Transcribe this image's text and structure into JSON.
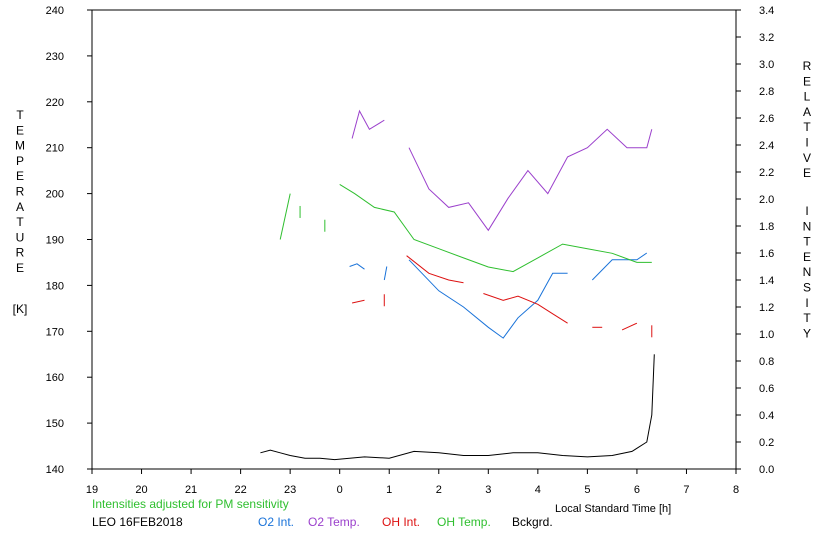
{
  "chart_data": {
    "type": "line",
    "xlabel": "Local Standard Time [h]",
    "x_ticks": [
      "19",
      "20",
      "21",
      "22",
      "23",
      "0",
      "1",
      "2",
      "3",
      "4",
      "5",
      "6",
      "7",
      "8"
    ],
    "xlim": [
      19,
      32
    ],
    "ylabel_left": [
      "T",
      "E",
      "M",
      "P",
      "E",
      "R",
      "A",
      "T",
      "U",
      "R",
      "E"
    ],
    "ylabel_left_unit": "[K]",
    "ylim_left": [
      140,
      240
    ],
    "y_ticks_left": [
      "140",
      "150",
      "160",
      "170",
      "180",
      "190",
      "200",
      "210",
      "220",
      "230",
      "240"
    ],
    "ylabel_right_line1": [
      "R",
      "E",
      "L",
      "A",
      "T",
      "I",
      "V",
      "E"
    ],
    "ylabel_right_line2": [
      "I",
      "N",
      "T",
      "E",
      "N",
      "S",
      "I",
      "T",
      "Y"
    ],
    "ylim_right": [
      0,
      3.4
    ],
    "y_ticks_right": [
      "0.0",
      "0.2",
      "0.4",
      "0.6",
      "0.8",
      "1.0",
      "1.2",
      "1.4",
      "1.6",
      "1.8",
      "2.0",
      "2.2",
      "2.4",
      "2.6",
      "2.8",
      "3.0",
      "3.2",
      "3.4"
    ],
    "note": "Intensities adjusted for PM sensitivity",
    "station": "LEO 16FEB2018",
    "grid": false,
    "series": [
      {
        "name": "O2 Int.",
        "color": "#1a73d9",
        "axis": "right",
        "segments": [
          [
            [
              24.2,
              1.5
            ],
            [
              24.35,
              1.52
            ],
            [
              24.5,
              1.48
            ]
          ],
          [
            [
              24.9,
              1.4
            ],
            [
              24.95,
              1.5
            ]
          ],
          [
            [
              25.4,
              1.55
            ],
            [
              26.0,
              1.32
            ],
            [
              26.5,
              1.2
            ],
            [
              27.0,
              1.05
            ],
            [
              27.3,
              0.97
            ],
            [
              27.6,
              1.12
            ],
            [
              28.0,
              1.25
            ],
            [
              28.3,
              1.45
            ],
            [
              28.6,
              1.45
            ]
          ],
          [
            [
              29.1,
              1.4
            ],
            [
              29.5,
              1.55
            ],
            [
              30.0,
              1.55
            ],
            [
              30.2,
              1.6
            ]
          ]
        ]
      },
      {
        "name": "O2 Temp.",
        "color": "#9b40cc",
        "axis": "left",
        "segments": [
          [
            [
              24.25,
              212
            ],
            [
              24.4,
              218
            ],
            [
              24.6,
              214
            ],
            [
              24.9,
              216
            ]
          ],
          [
            [
              25.4,
              210
            ],
            [
              25.8,
              201
            ],
            [
              26.2,
              197
            ],
            [
              26.6,
              198
            ],
            [
              27.0,
              192
            ],
            [
              27.4,
              199
            ],
            [
              27.8,
              205
            ],
            [
              28.2,
              200
            ],
            [
              28.6,
              208
            ],
            [
              29.0,
              210
            ],
            [
              29.4,
              214
            ],
            [
              29.8,
              210
            ],
            [
              30.2,
              210
            ],
            [
              30.3,
              214
            ]
          ]
        ]
      },
      {
        "name": "OH Int.",
        "color": "#dd1111",
        "axis": "right",
        "segments": [
          [
            [
              24.25,
              1.23
            ],
            [
              24.5,
              1.25
            ]
          ],
          [
            [
              24.9,
              1.25
            ]
          ],
          [
            [
              25.35,
              1.58
            ],
            [
              25.8,
              1.45
            ],
            [
              26.2,
              1.4
            ],
            [
              26.5,
              1.38
            ]
          ],
          [
            [
              26.9,
              1.3
            ],
            [
              27.3,
              1.25
            ],
            [
              27.6,
              1.28
            ],
            [
              28.0,
              1.22
            ],
            [
              28.3,
              1.15
            ],
            [
              28.6,
              1.08
            ]
          ],
          [
            [
              29.1,
              1.05
            ],
            [
              29.3,
              1.05
            ]
          ],
          [
            [
              29.7,
              1.03
            ],
            [
              30.0,
              1.08
            ]
          ],
          [
            [
              30.3,
              1.02
            ]
          ]
        ]
      },
      {
        "name": "OH Temp.",
        "color": "#2fbf2f",
        "axis": "left",
        "segments": [
          [
            [
              22.8,
              190
            ],
            [
              23.0,
              200
            ]
          ],
          [
            [
              23.2,
              196
            ]
          ],
          [
            [
              23.7,
              193
            ]
          ],
          [
            [
              24.0,
              202
            ],
            [
              24.3,
              200
            ],
            [
              24.7,
              197
            ],
            [
              25.1,
              196
            ],
            [
              25.5,
              190
            ],
            [
              26.0,
              188
            ],
            [
              26.5,
              186
            ],
            [
              27.0,
              184
            ],
            [
              27.5,
              183
            ],
            [
              28.0,
              186
            ],
            [
              28.5,
              189
            ],
            [
              29.0,
              188
            ],
            [
              29.5,
              187
            ],
            [
              30.0,
              185
            ],
            [
              30.3,
              185
            ]
          ]
        ]
      },
      {
        "name": "Bckgrd.",
        "color": "#000000",
        "axis": "right",
        "segments": [
          [
            [
              22.4,
              0.12
            ],
            [
              22.6,
              0.14
            ],
            [
              22.8,
              0.12
            ],
            [
              23.0,
              0.1
            ],
            [
              23.3,
              0.08
            ],
            [
              23.6,
              0.08
            ],
            [
              23.9,
              0.07
            ],
            [
              24.5,
              0.09
            ],
            [
              25.0,
              0.08
            ],
            [
              25.5,
              0.13
            ],
            [
              26.0,
              0.12
            ],
            [
              26.5,
              0.1
            ],
            [
              27.0,
              0.1
            ],
            [
              27.5,
              0.12
            ],
            [
              28.0,
              0.12
            ],
            [
              28.5,
              0.1
            ],
            [
              29.0,
              0.09
            ],
            [
              29.5,
              0.1
            ],
            [
              29.9,
              0.13
            ],
            [
              30.2,
              0.2
            ],
            [
              30.3,
              0.4
            ],
            [
              30.35,
              0.85
            ]
          ]
        ]
      }
    ]
  }
}
